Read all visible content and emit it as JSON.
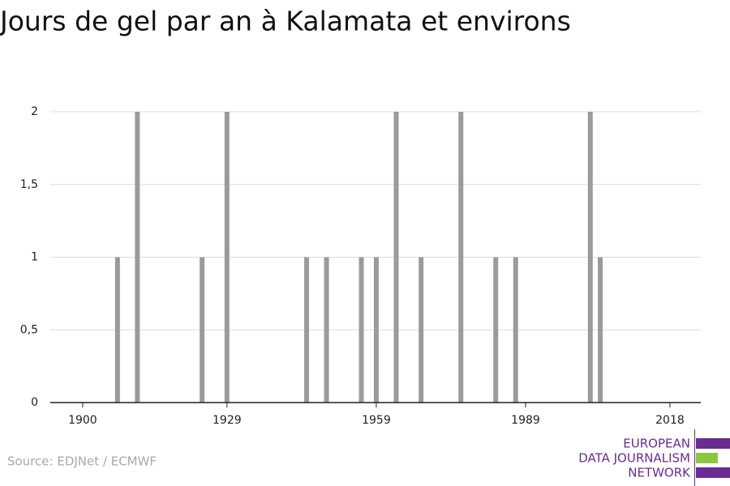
{
  "chart_data": {
    "type": "bar",
    "title": "Jours de gel par an à Kalamata et environs",
    "x": [
      1907,
      1911,
      1924,
      1929,
      1945,
      1949,
      1956,
      1959,
      1963,
      1968,
      1976,
      1983,
      1987,
      2002,
      2004
    ],
    "values": [
      1,
      2,
      1,
      2,
      1,
      1,
      1,
      1,
      2,
      1,
      2,
      1,
      1,
      2,
      1
    ],
    "color": "#9b9b9b",
    "xlim": [
      1893.5,
      2024.2
    ],
    "xticks": [
      1900,
      1929,
      1959,
      1989,
      2018
    ],
    "ylim": [
      0,
      2
    ],
    "yticks": [
      0,
      {
        "value": 0.5,
        "label": "0,5"
      },
      1,
      {
        "value": 1.5,
        "label": "1,5"
      },
      2
    ],
    "grid": true
  },
  "source": "Source: EDJNet / ECMWF",
  "logo": {
    "lines": [
      "EUROPEAN",
      "DATA JOURNALISM",
      "NETWORK"
    ]
  }
}
